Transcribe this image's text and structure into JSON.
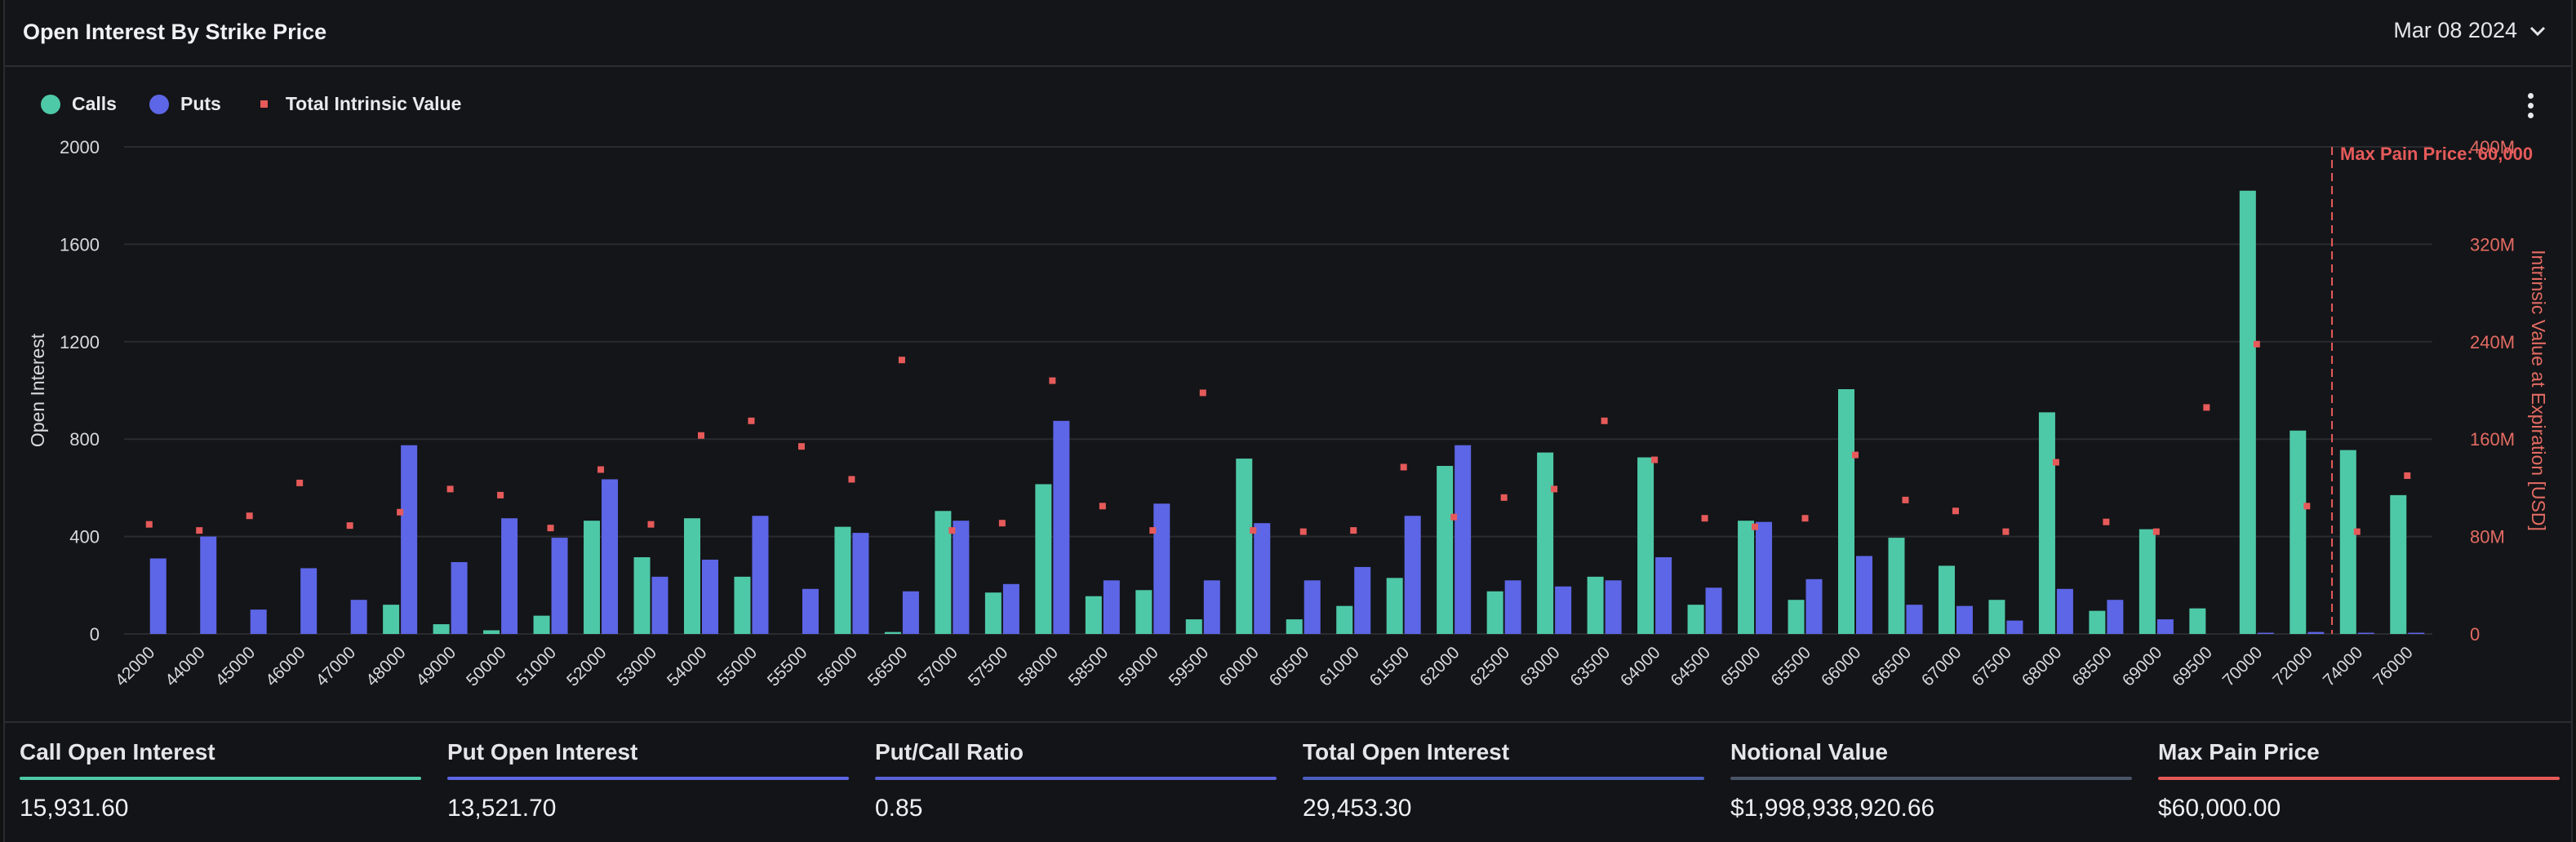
{
  "header": {
    "title": "Open Interest By Strike Price",
    "date": "Mar 08 2024"
  },
  "legend": {
    "calls": "Calls",
    "puts": "Puts",
    "tiv": "Total Intrinsic Value"
  },
  "colors": {
    "calls": "#4ec9a8",
    "puts": "#5d66e6",
    "tiv": "#e65a5a",
    "grid": "#2a2b30",
    "axis_text": "#d9d9dc",
    "right_axis": "#e36b63"
  },
  "chart_data": {
    "type": "bar",
    "xlabel": "",
    "ylabel": "Open Interest",
    "y2label": "Intrinsic Value at Expiration [USD]",
    "ylim": [
      0,
      2000
    ],
    "y2lim": [
      0,
      400
    ],
    "yticks": [
      "0",
      "400",
      "800",
      "1200",
      "1600",
      "2000"
    ],
    "y2ticks": [
      "0",
      "80M",
      "160M",
      "240M",
      "320M",
      "400M"
    ],
    "categories": [
      "42000",
      "44000",
      "45000",
      "46000",
      "47000",
      "48000",
      "49000",
      "50000",
      "51000",
      "52000",
      "53000",
      "54000",
      "55000",
      "55500",
      "56000",
      "56500",
      "57000",
      "57500",
      "58000",
      "58500",
      "59000",
      "59500",
      "60000",
      "60500",
      "61000",
      "61500",
      "62000",
      "62500",
      "63000",
      "63500",
      "64000",
      "64500",
      "65000",
      "65500",
      "66000",
      "66500",
      "67000",
      "67500",
      "68000",
      "68500",
      "69000",
      "69500",
      "70000",
      "72000",
      "74000",
      "76000"
    ],
    "series": [
      {
        "name": "Calls",
        "values": [
          0,
          0,
          0,
          0,
          0,
          120,
          40,
          15,
          75,
          465,
          315,
          475,
          235,
          0,
          440,
          8,
          505,
          170,
          615,
          155,
          180,
          60,
          720,
          60,
          115,
          230,
          690,
          175,
          745,
          235,
          725,
          120,
          465,
          140,
          1005,
          395,
          280,
          140,
          910,
          95,
          430,
          105,
          1820,
          835,
          755,
          570
        ]
      },
      {
        "name": "Puts",
        "values": [
          310,
          400,
          100,
          270,
          140,
          775,
          295,
          475,
          395,
          635,
          235,
          305,
          485,
          185,
          415,
          175,
          465,
          205,
          875,
          220,
          535,
          220,
          455,
          220,
          275,
          485,
          775,
          220,
          195,
          220,
          315,
          190,
          460,
          225,
          320,
          120,
          115,
          55,
          185,
          140,
          60,
          0,
          5,
          8,
          5,
          5
        ]
      },
      {
        "name": "Total Intrinsic Value",
        "unit": "M USD",
        "values": [
          90,
          85,
          97,
          124,
          89,
          100,
          119,
          114,
          87,
          135,
          90,
          163,
          175,
          154,
          127,
          225,
          85,
          91,
          208,
          105,
          85,
          198,
          85,
          84,
          85,
          137,
          96,
          112,
          119,
          175,
          143,
          95,
          88,
          95,
          147,
          110,
          101,
          84,
          141,
          92,
          84,
          186,
          238,
          105,
          84,
          130
        ]
      }
    ],
    "max_pain": {
      "label": "Max Pain Price: 60,000",
      "x_after": "72000"
    },
    "grid": true,
    "legend_position": "top-left"
  },
  "stats": [
    {
      "label": "Call Open Interest",
      "value": "15,931.60",
      "color": "#4ec9a8"
    },
    {
      "label": "Put Open Interest",
      "value": "13,521.70",
      "color": "#5d66e6"
    },
    {
      "label": "Put/Call Ratio",
      "value": "0.85",
      "color": "#5a63d8"
    },
    {
      "label": "Total Open Interest",
      "value": "29,453.30",
      "color": "#4a5fc0"
    },
    {
      "label": "Notional Value",
      "value": "$1,998,938,920.66",
      "color": "#4a5568"
    },
    {
      "label": "Max Pain Price",
      "value": "$60,000.00",
      "color": "#e65a5a"
    }
  ]
}
